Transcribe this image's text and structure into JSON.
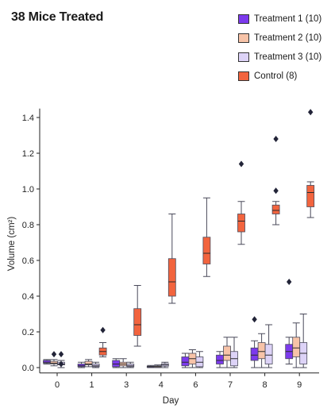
{
  "chart_data": {
    "type": "box",
    "title": "38 Mice Treated",
    "xlabel": "Day",
    "ylabel": "Volume (cm²)",
    "ylim": [
      -0.03,
      1.45
    ],
    "yticks": [
      0.0,
      0.2,
      0.4,
      0.6,
      0.8,
      1.0,
      1.2,
      1.4
    ],
    "ytick_labels": [
      "0.0",
      "0.2",
      "0.4",
      "0.6",
      "0.8",
      "1.0",
      "1.2",
      "1.4"
    ],
    "categories": [
      "0",
      "1",
      "3",
      "4",
      "6",
      "7",
      "8",
      "9"
    ],
    "grid": false,
    "legend_position": "top-right",
    "series": [
      {
        "name": "Treatment 1 (10)",
        "color": "#7c3aed",
        "boxes": [
          {
            "min": 0.02,
            "q1": 0.025,
            "median": 0.03,
            "q3": 0.04,
            "max": 0.045,
            "outliers": []
          },
          {
            "min": 0.0,
            "q1": 0.005,
            "median": 0.01,
            "q3": 0.02,
            "max": 0.03,
            "outliers": []
          },
          {
            "min": 0.0,
            "q1": 0.005,
            "median": 0.02,
            "q3": 0.04,
            "max": 0.05,
            "outliers": []
          },
          {
            "min": 0.0,
            "q1": 0.002,
            "median": 0.005,
            "q3": 0.008,
            "max": 0.012,
            "outliers": []
          },
          {
            "min": 0.0,
            "q1": 0.01,
            "median": 0.03,
            "q3": 0.06,
            "max": 0.08,
            "outliers": []
          },
          {
            "min": 0.0,
            "q1": 0.02,
            "median": 0.04,
            "q3": 0.07,
            "max": 0.09,
            "outliers": []
          },
          {
            "min": 0.0,
            "q1": 0.04,
            "median": 0.07,
            "q3": 0.11,
            "max": 0.15,
            "outliers": [
              0.27
            ]
          },
          {
            "min": 0.02,
            "q1": 0.05,
            "median": 0.09,
            "q3": 0.13,
            "max": 0.17,
            "outliers": [
              0.48
            ]
          }
        ]
      },
      {
        "name": "Treatment 2 (10)",
        "color": "#f7c3a8",
        "boxes": [
          {
            "min": 0.01,
            "q1": 0.02,
            "median": 0.025,
            "q3": 0.035,
            "max": 0.045,
            "outliers": [
              0.075
            ]
          },
          {
            "min": 0.005,
            "q1": 0.015,
            "median": 0.02,
            "q3": 0.035,
            "max": 0.045,
            "outliers": []
          },
          {
            "min": 0.0,
            "q1": 0.01,
            "median": 0.02,
            "q3": 0.03,
            "max": 0.05,
            "outliers": []
          },
          {
            "min": 0.0,
            "q1": 0.002,
            "median": 0.006,
            "q3": 0.01,
            "max": 0.015,
            "outliers": []
          },
          {
            "min": 0.0,
            "q1": 0.02,
            "median": 0.05,
            "q3": 0.08,
            "max": 0.1,
            "outliers": []
          },
          {
            "min": 0.0,
            "q1": 0.04,
            "median": 0.07,
            "q3": 0.12,
            "max": 0.17,
            "outliers": []
          },
          {
            "min": 0.0,
            "q1": 0.05,
            "median": 0.09,
            "q3": 0.14,
            "max": 0.19,
            "outliers": []
          },
          {
            "min": 0.0,
            "q1": 0.06,
            "median": 0.11,
            "q3": 0.17,
            "max": 0.25,
            "outliers": []
          }
        ]
      },
      {
        "name": "Treatment 3 (10)",
        "color": "#ddd3f7",
        "boxes": [
          {
            "min": 0.0,
            "q1": 0.015,
            "median": 0.02,
            "q3": 0.03,
            "max": 0.04,
            "outliers": [
              0.02,
              0.075
            ]
          },
          {
            "min": 0.0,
            "q1": 0.005,
            "median": 0.01,
            "q3": 0.02,
            "max": 0.03,
            "outliers": []
          },
          {
            "min": 0.0,
            "q1": 0.005,
            "median": 0.01,
            "q3": 0.02,
            "max": 0.03,
            "outliers": []
          },
          {
            "min": 0.0,
            "q1": 0.008,
            "median": 0.015,
            "q3": 0.022,
            "max": 0.03,
            "outliers": []
          },
          {
            "min": 0.0,
            "q1": 0.005,
            "median": 0.03,
            "q3": 0.06,
            "max": 0.09,
            "outliers": []
          },
          {
            "min": 0.0,
            "q1": 0.01,
            "median": 0.05,
            "q3": 0.09,
            "max": 0.17,
            "outliers": []
          },
          {
            "min": 0.0,
            "q1": 0.02,
            "median": 0.07,
            "q3": 0.13,
            "max": 0.24,
            "outliers": []
          },
          {
            "min": 0.0,
            "q1": 0.02,
            "median": 0.08,
            "q3": 0.14,
            "max": 0.3,
            "outliers": []
          }
        ]
      },
      {
        "name": "Control (8)",
        "color": "#f2643e",
        "boxes": [
          null,
          {
            "min": 0.06,
            "q1": 0.07,
            "median": 0.09,
            "q3": 0.11,
            "max": 0.14,
            "outliers": [
              0.21
            ]
          },
          {
            "min": 0.12,
            "q1": 0.18,
            "median": 0.24,
            "q3": 0.33,
            "max": 0.46,
            "outliers": []
          },
          {
            "min": 0.36,
            "q1": 0.4,
            "median": 0.48,
            "q3": 0.61,
            "max": 0.86,
            "outliers": []
          },
          {
            "min": 0.51,
            "q1": 0.58,
            "median": 0.64,
            "q3": 0.73,
            "max": 0.95,
            "outliers": []
          },
          {
            "min": 0.69,
            "q1": 0.76,
            "median": 0.82,
            "q3": 0.86,
            "max": 0.93,
            "outliers": [
              1.14
            ]
          },
          {
            "min": 0.8,
            "q1": 0.86,
            "median": 0.88,
            "q3": 0.91,
            "max": 0.93,
            "outliers": [
              0.99,
              1.28
            ]
          },
          {
            "min": 0.84,
            "q1": 0.9,
            "median": 0.98,
            "q3": 1.02,
            "max": 1.04,
            "outliers": [
              1.43
            ]
          }
        ]
      }
    ]
  }
}
